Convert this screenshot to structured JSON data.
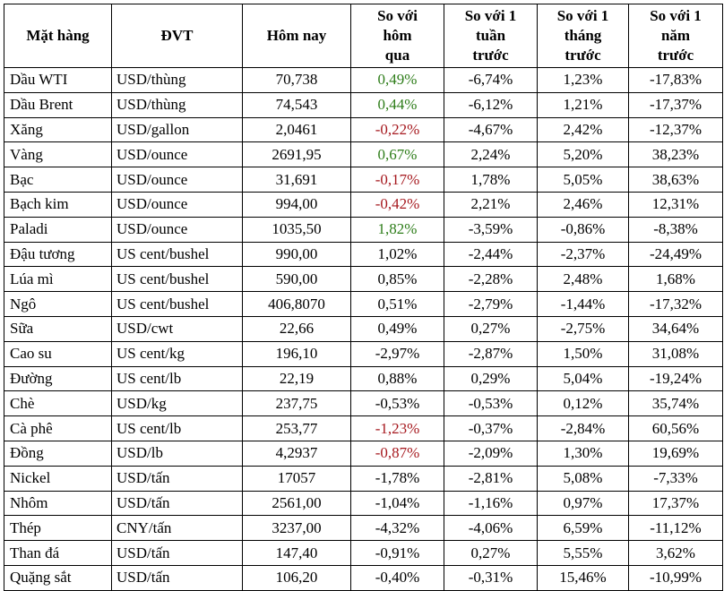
{
  "table": {
    "headers": [
      "Mặt hàng",
      "ĐVT",
      "Hôm nay",
      "So với\nhôm\nqua",
      "So với 1\ntuần\ntrước",
      "So với 1\ntháng\ntrước",
      "So với 1\nnăm\ntrước"
    ],
    "rows": [
      [
        "Dầu WTI",
        "USD/thùng",
        "70,738",
        "0,49%",
        "-6,74%",
        "1,23%",
        "-17,83%"
      ],
      [
        "Dầu Brent",
        "USD/thùng",
        "74,543",
        "0,44%",
        "-6,12%",
        "1,21%",
        "-17,37%"
      ],
      [
        "Xăng",
        "USD/gallon",
        "2,0461",
        "-0,22%",
        "-4,67%",
        "2,42%",
        "-12,37%"
      ],
      [
        "Vàng",
        "USD/ounce",
        "2691,95",
        "0,67%",
        "2,24%",
        "5,20%",
        "38,23%"
      ],
      [
        "Bạc",
        "USD/ounce",
        "31,691",
        "-0,17%",
        "1,78%",
        "5,05%",
        "38,63%"
      ],
      [
        "Bạch kim",
        "USD/ounce",
        "994,00",
        "-0,42%",
        "2,21%",
        "2,46%",
        "12,31%"
      ],
      [
        "Paladi",
        "USD/ounce",
        "1035,50",
        "1,82%",
        "-3,59%",
        "-0,86%",
        "-8,38%"
      ],
      [
        "Đậu tương",
        "US cent/bushel",
        "990,00",
        "1,02%",
        "-2,44%",
        "-2,37%",
        "-24,49%"
      ],
      [
        "Lúa mì",
        "US cent/bushel",
        "590,00",
        "0,85%",
        "-2,28%",
        "2,48%",
        "1,68%"
      ],
      [
        "Ngô",
        "US cent/bushel",
        "406,8070",
        "0,51%",
        "-2,79%",
        "-1,44%",
        "-17,32%"
      ],
      [
        "Sữa",
        "USD/cwt",
        "22,66",
        "0,49%",
        "0,27%",
        "-2,75%",
        "34,64%"
      ],
      [
        "Cao su",
        "US cent/kg",
        "196,10",
        "-2,97%",
        "-2,87%",
        "1,50%",
        "31,08%"
      ],
      [
        "Đường",
        "US cent/lb",
        "22,19",
        "0,88%",
        "0,29%",
        "5,04%",
        "-19,24%"
      ],
      [
        "Chè",
        "USD/kg",
        "237,75",
        "-0,53%",
        "-0,53%",
        "0,12%",
        "35,74%"
      ],
      [
        "Cà phê",
        "US cent/lb",
        "253,77",
        "-1,23%",
        "-0,37%",
        "-2,84%",
        "60,56%"
      ],
      [
        "Đồng",
        "USD/lb",
        "4,2937",
        "-0,87%",
        "-2,09%",
        "1,30%",
        "19,69%"
      ],
      [
        "Nickel",
        "USD/tấn",
        "17057",
        "-1,78%",
        "-2,81%",
        "5,08%",
        "-7,33%"
      ],
      [
        "Nhôm",
        "USD/tấn",
        "2561,00",
        "-1,04%",
        "-1,16%",
        "0,97%",
        "17,37%"
      ],
      [
        "Thép",
        "CNY/tấn",
        "3237,00",
        "-4,32%",
        "-4,06%",
        "6,59%",
        "-11,12%"
      ],
      [
        "Than đá",
        "USD/tấn",
        "147,40",
        "-0,91%",
        "0,27%",
        "5,55%",
        "3,62%"
      ],
      [
        "Quặng sắt",
        "USD/tấn",
        "106,20",
        "-0,40%",
        "-0,31%",
        "15,46%",
        "-10,99%"
      ]
    ],
    "daily_change_colors": [
      "pos",
      "pos",
      "neg",
      "pos",
      "neg",
      "neg",
      "pos",
      "",
      "",
      "",
      "",
      "",
      "",
      "",
      "neg",
      "neg",
      "",
      "",
      "",
      "",
      ""
    ],
    "colors": {
      "positive": "#2e7d1a",
      "negative": "#a6191f",
      "text": "#000000",
      "border": "#000000"
    }
  }
}
